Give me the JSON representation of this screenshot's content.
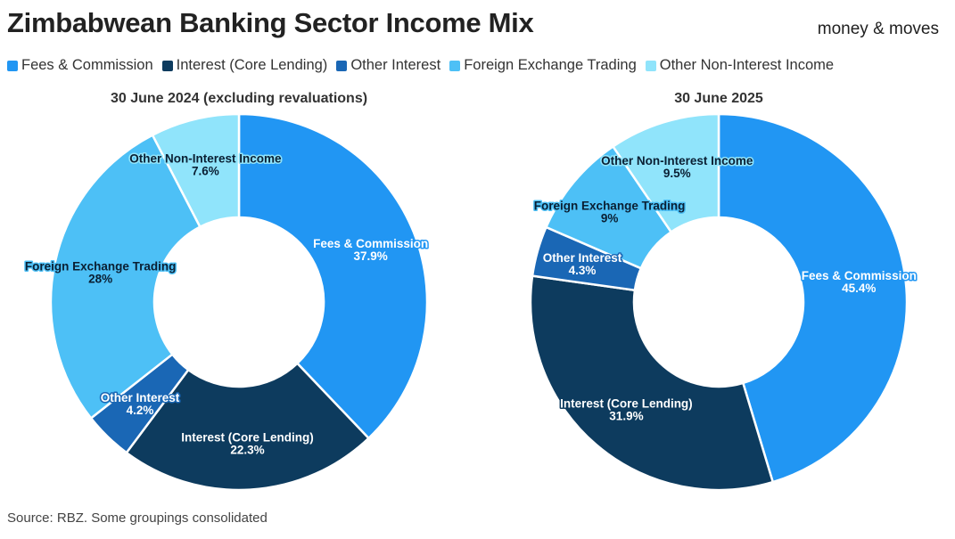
{
  "header": {
    "title": "Zimbabwean Banking Sector Income Mix",
    "brand": "money & moves"
  },
  "legend": [
    {
      "label": "Fees & Commission",
      "color": "#2196F3"
    },
    {
      "label": "Interest (Core Lending)",
      "color": "#0D3B5E"
    },
    {
      "label": "Other Interest",
      "color": "#1A67B5"
    },
    {
      "label": "Foreign Exchange Trading",
      "color": "#4DC0F6"
    },
    {
      "label": "Other Non-Interest Income",
      "color": "#90E4FB"
    }
  ],
  "source": "Source: RBZ. Some groupings consolidated",
  "chart_data": [
    {
      "type": "pie",
      "title": "30 June 2024 (excluding revaluations)",
      "slices": [
        {
          "label": "Fees & Commission",
          "value": 37.9,
          "display": "37.9%",
          "color": "#2196F3"
        },
        {
          "label": "Interest (Core Lending)",
          "value": 22.3,
          "display": "22.3%",
          "color": "#0D3B5E"
        },
        {
          "label": "Other Interest",
          "value": 4.2,
          "display": "4.2%",
          "color": "#1A67B5"
        },
        {
          "label": "Foreign Exchange Trading",
          "value": 28,
          "display": "28%",
          "color": "#4DC0F6"
        },
        {
          "label": "Other Non-Interest Income",
          "value": 7.6,
          "display": "7.6%",
          "color": "#90E4FB"
        }
      ]
    },
    {
      "type": "pie",
      "title": "30 June 2025",
      "slices": [
        {
          "label": "Fees & Commission",
          "value": 45.4,
          "display": "45.4%",
          "color": "#2196F3"
        },
        {
          "label": "Interest (Core Lending)",
          "value": 31.9,
          "display": "31.9%",
          "color": "#0D3B5E"
        },
        {
          "label": "Other Interest",
          "value": 4.3,
          "display": "4.3%",
          "color": "#1A67B5"
        },
        {
          "label": "Foreign Exchange Trading",
          "value": 9,
          "display": "9%",
          "color": "#4DC0F6"
        },
        {
          "label": "Other Non-Interest Income",
          "value": 9.5,
          "display": "9.5%",
          "color": "#90E4FB"
        }
      ]
    }
  ]
}
